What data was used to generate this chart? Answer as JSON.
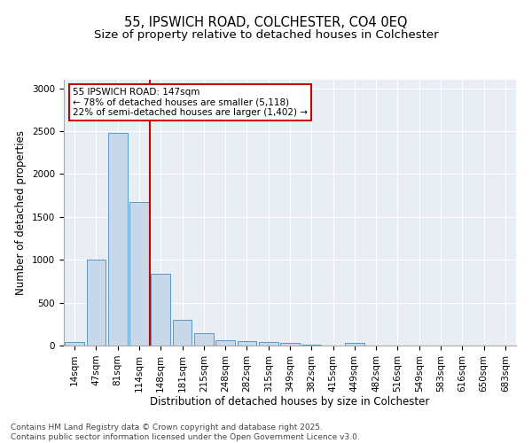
{
  "title_line1": "55, IPSWICH ROAD, COLCHESTER, CO4 0EQ",
  "title_line2": "Size of property relative to detached houses in Colchester",
  "xlabel": "Distribution of detached houses by size in Colchester",
  "ylabel": "Number of detached properties",
  "categories": [
    "14sqm",
    "47sqm",
    "81sqm",
    "114sqm",
    "148sqm",
    "181sqm",
    "215sqm",
    "248sqm",
    "282sqm",
    "315sqm",
    "349sqm",
    "382sqm",
    "415sqm",
    "449sqm",
    "482sqm",
    "516sqm",
    "549sqm",
    "583sqm",
    "616sqm",
    "650sqm",
    "683sqm"
  ],
  "values": [
    40,
    1005,
    2480,
    1670,
    840,
    300,
    140,
    60,
    55,
    40,
    30,
    10,
    0,
    30,
    0,
    0,
    0,
    0,
    0,
    0,
    0
  ],
  "bar_color": "#c8d8e8",
  "bar_edge_color": "#5599cc",
  "subject_line_bin_index": 4,
  "subject_label": "55 IPSWICH ROAD: 147sqm",
  "subject_pct_smaller": "78% of detached houses are smaller (5,118)",
  "subject_pct_larger": "22% of semi-detached houses are larger (1,402)",
  "annotation_box_color": "#cc0000",
  "subject_line_color": "#cc0000",
  "ylim": [
    0,
    3100
  ],
  "yticks": [
    0,
    500,
    1000,
    1500,
    2000,
    2500,
    3000
  ],
  "bg_color": "#e8eef4",
  "footer_line1": "Contains HM Land Registry data © Crown copyright and database right 2025.",
  "footer_line2": "Contains public sector information licensed under the Open Government Licence v3.0.",
  "title_fontsize": 10.5,
  "subtitle_fontsize": 9.5,
  "axis_label_fontsize": 8.5,
  "tick_fontsize": 7.5,
  "annotation_fontsize": 7.5,
  "footer_fontsize": 6.5
}
